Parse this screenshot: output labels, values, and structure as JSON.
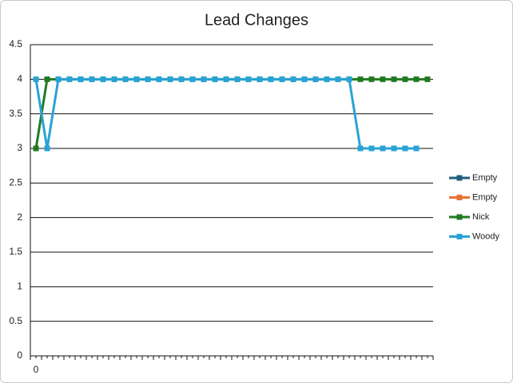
{
  "chart_data": {
    "type": "line",
    "title": "Lead Changes",
    "categories": [
      "0",
      null,
      null,
      null,
      null,
      null,
      null,
      null,
      null,
      null,
      null,
      null,
      null,
      null,
      null,
      null,
      null,
      null,
      null,
      null,
      null,
      null,
      null,
      null,
      null,
      null,
      null,
      null,
      null,
      null,
      null,
      null,
      null,
      null,
      null,
      null
    ],
    "series": [
      {
        "name": "Empty",
        "color": "#1f5f7a",
        "values": [
          null,
          null,
          null,
          null,
          null,
          null,
          null,
          null,
          null,
          null,
          null,
          null,
          null,
          null,
          null,
          null,
          null,
          null,
          null,
          null,
          null,
          null,
          null,
          null,
          null,
          null,
          null,
          null,
          null,
          null,
          null,
          null,
          null,
          null,
          null,
          null
        ]
      },
      {
        "name": "Empty",
        "color": "#e97132",
        "values": [
          null,
          null,
          null,
          null,
          null,
          null,
          null,
          null,
          null,
          null,
          null,
          null,
          null,
          null,
          null,
          null,
          null,
          null,
          null,
          null,
          null,
          null,
          null,
          null,
          null,
          null,
          null,
          null,
          null,
          null,
          null,
          null,
          null,
          null,
          null,
          null
        ]
      },
      {
        "name": "Nick",
        "color": "#217a21",
        "values": [
          3,
          4,
          4,
          4,
          4,
          4,
          4,
          4,
          4,
          4,
          4,
          4,
          4,
          4,
          4,
          4,
          4,
          4,
          4,
          4,
          4,
          4,
          4,
          4,
          4,
          4,
          4,
          4,
          4,
          4,
          4,
          4,
          4,
          4,
          4,
          4
        ]
      },
      {
        "name": "Woody",
        "color": "#29a3d6",
        "values": [
          4,
          3,
          4,
          4,
          4,
          4,
          4,
          4,
          4,
          4,
          4,
          4,
          4,
          4,
          4,
          4,
          4,
          4,
          4,
          4,
          4,
          4,
          4,
          4,
          4,
          4,
          4,
          4,
          4,
          3,
          3,
          3,
          3,
          3,
          3,
          null
        ]
      }
    ],
    "ylim": [
      0,
      4.5
    ],
    "yticks": [
      0,
      0.5,
      1,
      1.5,
      2,
      2.5,
      3,
      3.5,
      4,
      4.5
    ],
    "grid": true,
    "legend": "right"
  }
}
